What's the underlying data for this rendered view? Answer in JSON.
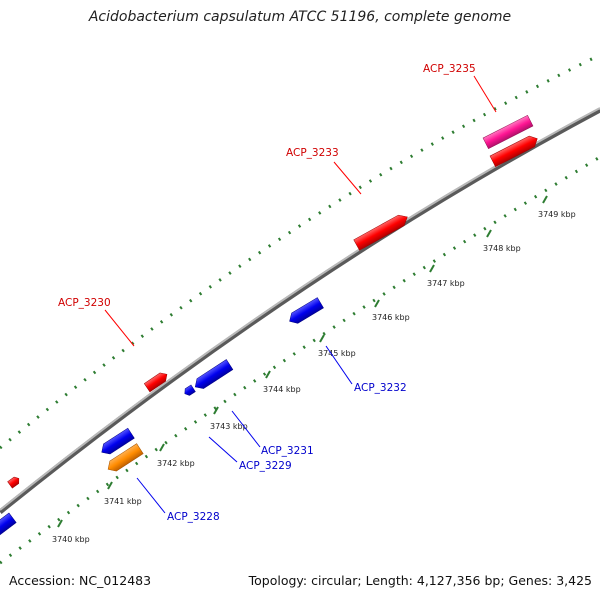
{
  "title": "Acidobacterium capsulatum ATCC 51196, complete genome",
  "accession": "Accession: NC_012483",
  "summary": "Topology: circular; Length: 4,127,356 bp; Genes: 3,425",
  "colors": {
    "backbone": "#8a8a8a",
    "tick": "#2e7d32",
    "forward_gene": "#ff0000",
    "reverse_gene": "#0000ee",
    "forward_label": "#d00000",
    "reverse_label": "#0000cc",
    "pink_gene": "#ff1493",
    "orange_gene": "#ff8c00"
  },
  "ticks": [
    {
      "label": "3740 kbp"
    },
    {
      "label": "3741 kbp"
    },
    {
      "label": "3742 kbp"
    },
    {
      "label": "3743 kbp"
    },
    {
      "label": "3744 kbp"
    },
    {
      "label": "3745 kbp"
    },
    {
      "label": "3746 kbp"
    },
    {
      "label": "3747 kbp"
    },
    {
      "label": "3748 kbp"
    },
    {
      "label": "3749 kbp"
    }
  ],
  "genes": [
    {
      "name": "ACP_3230",
      "strand": "forward"
    },
    {
      "name": "ACP_3233",
      "strand": "forward"
    },
    {
      "name": "ACP_3235",
      "strand": "forward"
    },
    {
      "name": "ACP_3228",
      "strand": "reverse"
    },
    {
      "name": "ACP_3229",
      "strand": "reverse"
    },
    {
      "name": "ACP_3231",
      "strand": "reverse"
    },
    {
      "name": "ACP_3232",
      "strand": "reverse"
    }
  ]
}
